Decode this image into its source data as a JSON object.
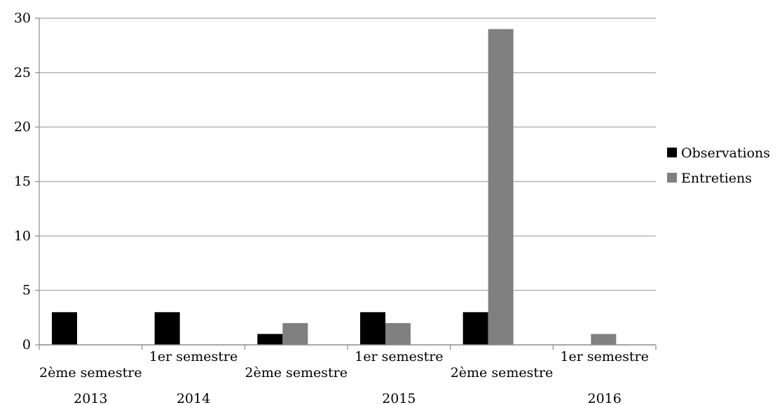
{
  "chart_data": {
    "type": "bar",
    "categories": [
      {
        "semester": "2ème semestre",
        "year": "2013"
      },
      {
        "semester": "1er semestre",
        "year": "2014"
      },
      {
        "semester": "2ème semestre",
        "year": ""
      },
      {
        "semester": "1er semestre",
        "year": "2015"
      },
      {
        "semester": "2ème semestre",
        "year": ""
      },
      {
        "semester": "1er semestre",
        "year": "2016"
      }
    ],
    "series": [
      {
        "name": "Observations",
        "color": "#000000",
        "values": [
          3,
          3,
          1,
          3,
          3,
          0
        ]
      },
      {
        "name": "Entretiens",
        "color": "#808080",
        "values": [
          0,
          0,
          2,
          2,
          29,
          1
        ]
      }
    ],
    "ylim": [
      0,
      30
    ],
    "yticks": [
      0,
      5,
      10,
      15,
      20,
      25,
      30
    ],
    "grid": true,
    "legend": "right",
    "title": "",
    "xlabel": "",
    "ylabel": ""
  }
}
